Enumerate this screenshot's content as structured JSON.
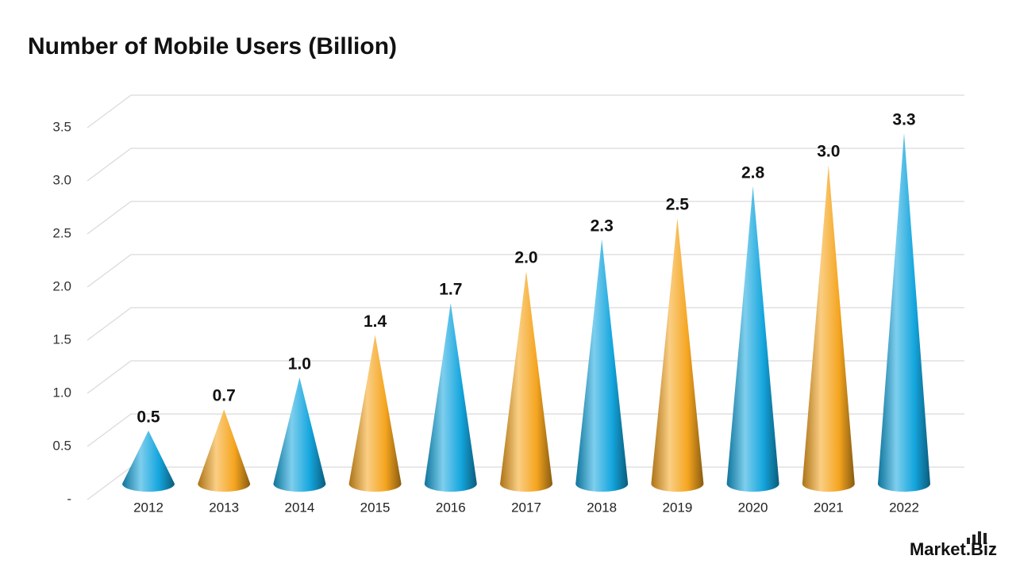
{
  "chart_data": {
    "type": "cone",
    "title": "Number of Mobile Users  (Billion)",
    "categories": [
      "2012",
      "2013",
      "2014",
      "2015",
      "2016",
      "2017",
      "2018",
      "2019",
      "2020",
      "2021",
      "2022"
    ],
    "values": [
      0.5,
      0.7,
      1.0,
      1.4,
      1.7,
      2.0,
      2.3,
      2.5,
      2.8,
      3.0,
      3.3
    ],
    "value_labels": [
      "0.5",
      "0.7",
      "1.0",
      "1.4",
      "1.7",
      "2.0",
      "2.3",
      "2.5",
      "2.8",
      "3.0",
      "3.3"
    ],
    "colors": [
      "#14a6de",
      "#f5a51f",
      "#14a6de",
      "#f5a51f",
      "#14a6de",
      "#f5a51f",
      "#14a6de",
      "#f5a51f",
      "#14a6de",
      "#f5a51f",
      "#14a6de"
    ],
    "ylim": [
      0,
      3.5
    ],
    "yticks": [
      {
        "value": 0,
        "label": "-"
      },
      0.5,
      {
        "value": 1,
        "label": "1.0"
      },
      1.5,
      {
        "value": 2,
        "label": "2.0"
      },
      2.5,
      {
        "value": 3,
        "label": "3.0"
      },
      3.5
    ],
    "grid": true,
    "source": "Market.Biz"
  }
}
